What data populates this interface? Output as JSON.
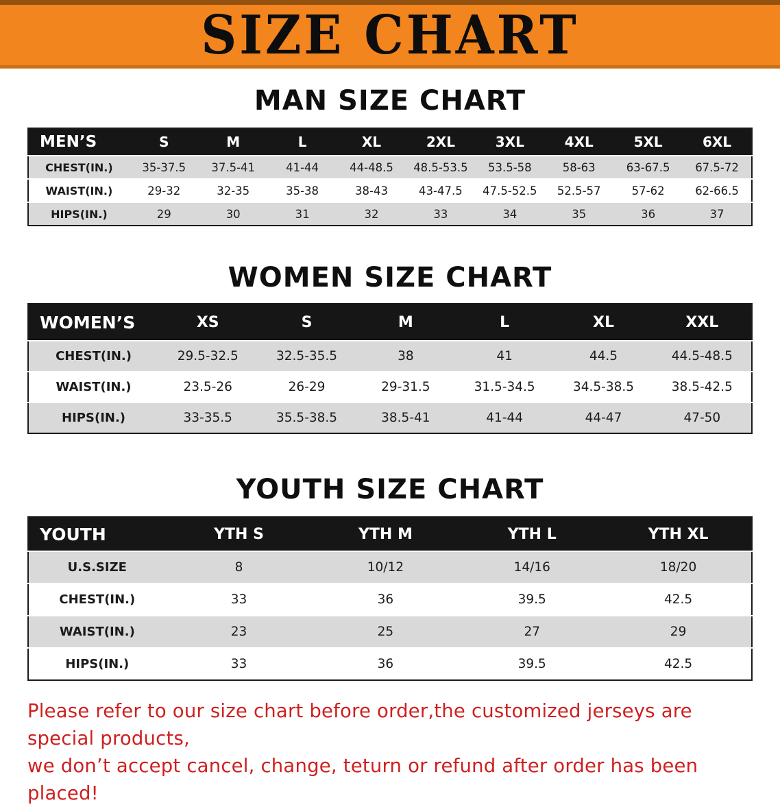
{
  "banner": {
    "title": "SIZE CHART"
  },
  "colors": {
    "banner_orange": "#f2851e",
    "table_header_black": "#161616",
    "stripe_gray": "#d9d9d9",
    "disclaimer_red": "#cf2020"
  },
  "sections": [
    {
      "id": "men",
      "heading": "MAN SIZE CHART",
      "table": {
        "header": [
          "MEN’S",
          "S",
          "M",
          "L",
          "XL",
          "2XL",
          "3XL",
          "4XL",
          "5XL",
          "6XL"
        ],
        "rows": [
          [
            "CHEST(IN.)",
            "35-37.5",
            "37.5-41",
            "41-44",
            "44-48.5",
            "48.5-53.5",
            "53.5-58",
            "58-63",
            "63-67.5",
            "67.5-72"
          ],
          [
            "WAIST(IN.)",
            "29-32",
            "32-35",
            "35-38",
            "38-43",
            "43-47.5",
            "47.5-52.5",
            "52.5-57",
            "57-62",
            "62-66.5"
          ],
          [
            "HIPS(IN.)",
            "29",
            "30",
            "31",
            "32",
            "33",
            "34",
            "35",
            "36",
            "37"
          ]
        ]
      }
    },
    {
      "id": "women",
      "heading": "WOMEN SIZE CHART",
      "table": {
        "header": [
          "WOMEN’S",
          "XS",
          "S",
          "M",
          "L",
          "XL",
          "XXL"
        ],
        "rows": [
          [
            "CHEST(IN.)",
            "29.5-32.5",
            "32.5-35.5",
            "38",
            "41",
            "44.5",
            "44.5-48.5"
          ],
          [
            "WAIST(IN.)",
            "23.5-26",
            "26-29",
            "29-31.5",
            "31.5-34.5",
            "34.5-38.5",
            "38.5-42.5"
          ],
          [
            "HIPS(IN.)",
            "33-35.5",
            "35.5-38.5",
            "38.5-41",
            "41-44",
            "44-47",
            "47-50"
          ]
        ]
      }
    },
    {
      "id": "youth",
      "heading": "YOUTH SIZE CHART",
      "table": {
        "header": [
          "YOUTH",
          "YTH S",
          "YTH M",
          "YTH L",
          "YTH XL"
        ],
        "rows": [
          [
            "U.S.SIZE",
            "8",
            "10/12",
            "14/16",
            "18/20"
          ],
          [
            "CHEST(IN.)",
            "33",
            "36",
            "39.5",
            "42.5"
          ],
          [
            "WAIST(IN.)",
            "23",
            "25",
            "27",
            "29"
          ],
          [
            "HIPS(IN.)",
            "33",
            "36",
            "39.5",
            "42.5"
          ]
        ]
      }
    }
  ],
  "disclaimer": {
    "line1": "Please refer to our size chart before order,the customized jerseys are special products,",
    "line2": "we don’t accept cancel, change, teturn or refund after order has been placed!"
  }
}
